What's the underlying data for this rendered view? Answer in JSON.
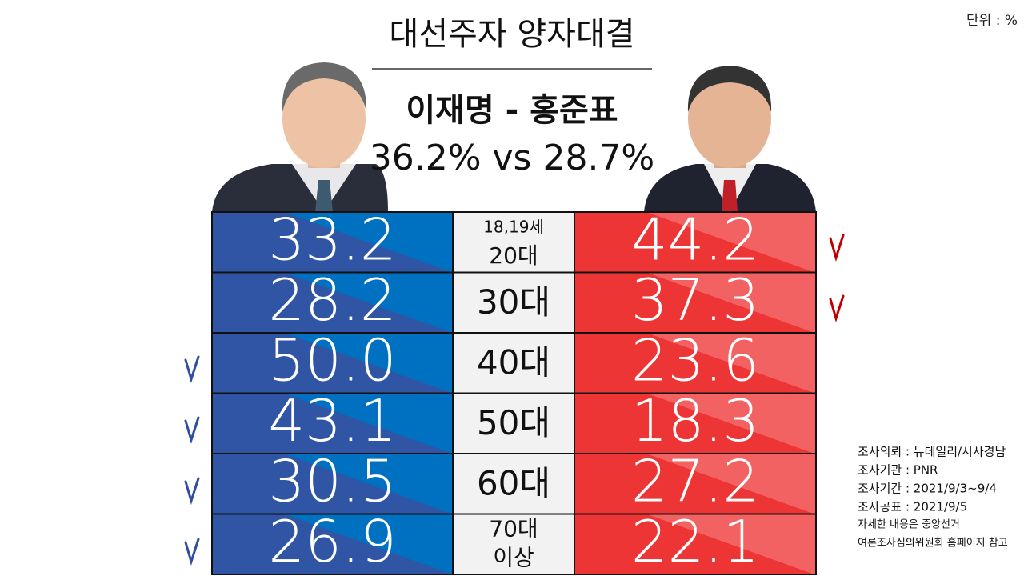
{
  "header": {
    "title": "대선주자 양자대결",
    "unit": "단위 : %",
    "matchup": "이재명 - 홍준표",
    "summary": "36.2% vs 28.7%"
  },
  "table": {
    "rows": [
      {
        "age": [
          "18,19세",
          "20대"
        ],
        "left": "33.2",
        "right": "44.2"
      },
      {
        "age": [
          "30대"
        ],
        "left": "28.2",
        "right": "37.3"
      },
      {
        "age": [
          "40대"
        ],
        "left": "50.0",
        "right": "23.6"
      },
      {
        "age": [
          "50대"
        ],
        "left": "43.1",
        "right": "18.3"
      },
      {
        "age": [
          "60대"
        ],
        "left": "30.5",
        "right": "27.2"
      },
      {
        "age": [
          "70대",
          "이상"
        ],
        "left": "26.9",
        "right": "22.1"
      }
    ]
  },
  "notes": [
    "조사의뢰 : 뉴데일리/시사경남",
    "조사기관 : PNR",
    "조사기간 : 2021/9/3~9/4",
    "조사공표 : 2021/9/5",
    "자세한 내용은 중앙선거",
    "여론조사심의위원회 홈페이지 참고"
  ]
}
